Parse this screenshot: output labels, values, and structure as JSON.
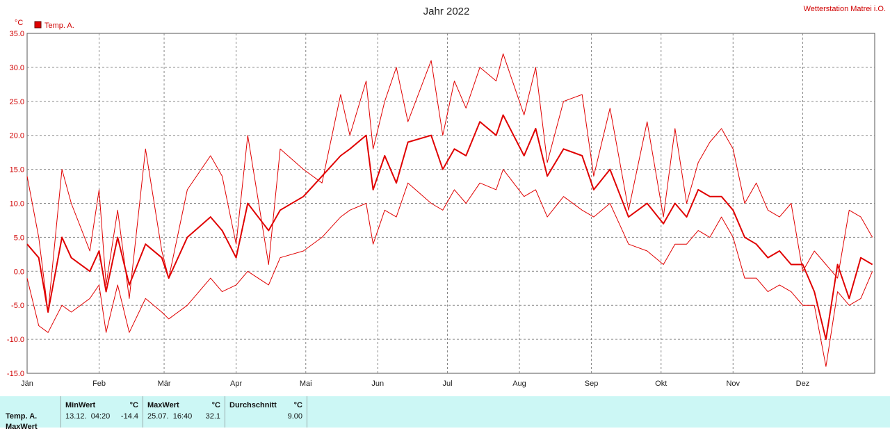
{
  "chart_data": {
    "type": "line",
    "title": "Jahr 2022",
    "station_label": "Wetterstation Matrei i.O.",
    "ylabel": "°C",
    "ylim": [
      -15,
      35
    ],
    "yticks": [
      "35.0",
      "30.0",
      "25.0",
      "20.0",
      "15.0",
      "10.0",
      "5.0",
      "0.0",
      "-5.0",
      "-10.0",
      "-15.0"
    ],
    "xticks": [
      "Jän",
      "Feb",
      "Mär",
      "Apr",
      "Mai",
      "Jun",
      "Jul",
      "Aug",
      "Sep",
      "Okt",
      "Nov",
      "Dez"
    ],
    "month_start_days": [
      1,
      32,
      60,
      91,
      121,
      152,
      182,
      213,
      244,
      274,
      305,
      335
    ],
    "days_in_year": 365,
    "grid": true,
    "legend_position": "top-left",
    "colors": {
      "series": "#e00000",
      "axis_text": "#d00000",
      "grid": "#888888"
    },
    "legend": [
      {
        "name": "Temp. A.",
        "color": "#e00000"
      }
    ],
    "series": [
      {
        "name": "Temp. A.",
        "role": "daily_max",
        "x": [
          1,
          6,
          10,
          16,
          20,
          28,
          32,
          35,
          40,
          45,
          52,
          59,
          62,
          70,
          80,
          85,
          91,
          96,
          105,
          110,
          120,
          128,
          136,
          140,
          147,
          150,
          155,
          160,
          165,
          175,
          180,
          185,
          190,
          196,
          203,
          206,
          215,
          220,
          225,
          232,
          240,
          245,
          252,
          260,
          268,
          275,
          280,
          285,
          290,
          295,
          300,
          305,
          310,
          315,
          320,
          325,
          330,
          335,
          340,
          345,
          350,
          355,
          360,
          365
        ],
        "y": [
          14,
          5,
          -6,
          15,
          10,
          3,
          12,
          -2,
          9,
          -4,
          18,
          3,
          -1,
          12,
          17,
          14,
          4,
          20,
          1,
          18,
          15,
          13,
          26,
          20,
          28,
          18,
          25,
          30,
          22,
          31,
          20,
          28,
          24,
          30,
          28,
          32,
          23,
          30,
          16,
          25,
          26,
          14,
          24,
          9,
          22,
          8,
          21,
          10,
          16,
          19,
          21,
          18,
          10,
          13,
          9,
          8,
          10,
          0,
          3,
          1,
          -1,
          9,
          8,
          5
        ]
      },
      {
        "name": "Temp. A.",
        "role": "daily_mean",
        "x": [
          1,
          6,
          10,
          16,
          20,
          28,
          32,
          35,
          40,
          45,
          52,
          59,
          62,
          70,
          80,
          85,
          91,
          96,
          105,
          110,
          120,
          128,
          136,
          140,
          147,
          150,
          155,
          160,
          165,
          175,
          180,
          185,
          190,
          196,
          203,
          206,
          215,
          220,
          225,
          232,
          240,
          245,
          252,
          260,
          268,
          275,
          280,
          285,
          290,
          295,
          300,
          305,
          310,
          315,
          320,
          325,
          330,
          335,
          340,
          345,
          350,
          355,
          360,
          365
        ],
        "y": [
          4,
          2,
          -6,
          5,
          2,
          0,
          3,
          -3,
          5,
          -2,
          4,
          2,
          -1,
          5,
          8,
          6,
          2,
          10,
          6,
          9,
          11,
          14,
          17,
          18,
          20,
          12,
          17,
          13,
          19,
          20,
          15,
          18,
          17,
          22,
          20,
          23,
          17,
          21,
          14,
          18,
          17,
          12,
          15,
          8,
          10,
          7,
          10,
          8,
          12,
          11,
          11,
          9,
          5,
          4,
          2,
          3,
          1,
          1,
          -3,
          -10,
          1,
          -4,
          2,
          1
        ]
      },
      {
        "name": "Temp. A.",
        "role": "daily_min",
        "x": [
          1,
          6,
          10,
          16,
          20,
          28,
          32,
          35,
          40,
          45,
          52,
          59,
          62,
          70,
          80,
          85,
          91,
          96,
          105,
          110,
          120,
          128,
          136,
          140,
          147,
          150,
          155,
          160,
          165,
          175,
          180,
          185,
          190,
          196,
          203,
          206,
          215,
          220,
          225,
          232,
          240,
          245,
          252,
          260,
          268,
          275,
          280,
          285,
          290,
          295,
          300,
          305,
          310,
          315,
          320,
          325,
          330,
          335,
          340,
          345,
          350,
          355,
          360,
          365
        ],
        "y": [
          -1,
          -8,
          -9,
          -5,
          -6,
          -4,
          -2,
          -9,
          -2,
          -9,
          -4,
          -6,
          -7,
          -5,
          -1,
          -3,
          -2,
          0,
          -2,
          2,
          3,
          5,
          8,
          9,
          10,
          4,
          9,
          8,
          13,
          10,
          9,
          12,
          10,
          13,
          12,
          15,
          11,
          12,
          8,
          11,
          9,
          8,
          10,
          4,
          3,
          1,
          4,
          4,
          6,
          5,
          8,
          5,
          -1,
          -1,
          -3,
          -2,
          -3,
          -5,
          -5,
          -14,
          -3,
          -5,
          -4,
          0
        ]
      }
    ]
  },
  "stats": {
    "row_label": "Temp. A.",
    "row_label_2": "MaxWert",
    "min_header": "MinWert",
    "min_unit": "°C",
    "min_time": "13.12.  04:20",
    "min_value": "-14.4",
    "max_header": "MaxWert",
    "max_unit": "°C",
    "max_time": "25.07.  16:40",
    "max_value": "32.1",
    "avg_header": "Durchschnitt",
    "avg_unit": "°C",
    "avg_value": "9.00"
  }
}
